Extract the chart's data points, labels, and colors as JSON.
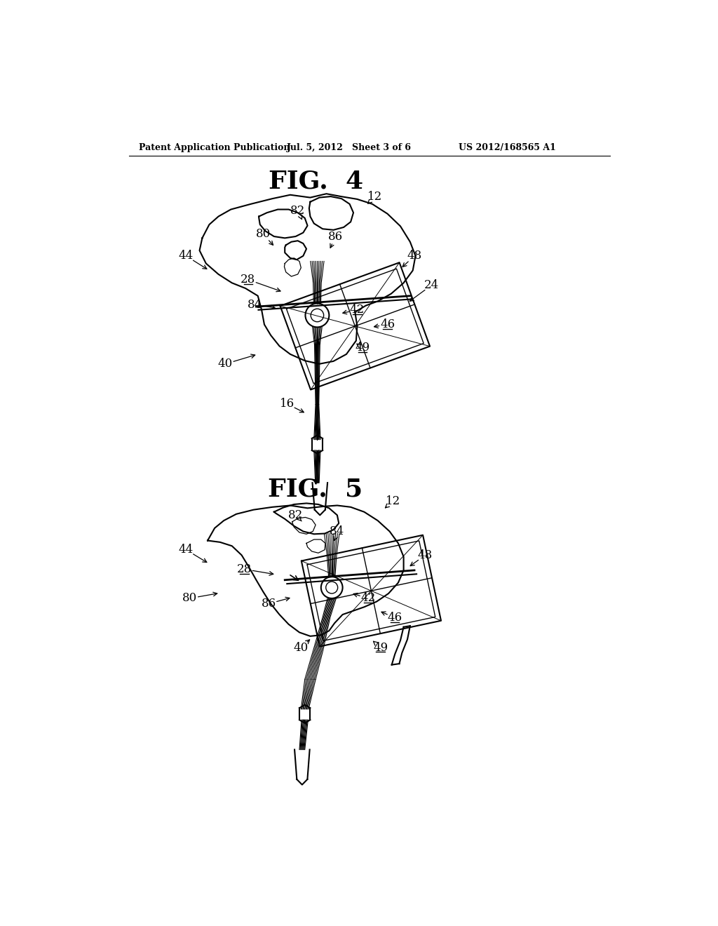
{
  "bg_color": "#ffffff",
  "line_color": "#000000",
  "fig4_title": "FIG.  4",
  "fig5_title": "FIG.  5",
  "header_left": "Patent Application Publication",
  "header_mid": "Jul. 5, 2012   Sheet 3 of 6",
  "header_right": "US 2012/168565 A1",
  "underlined_labels": [
    "28",
    "42",
    "46",
    "49"
  ]
}
